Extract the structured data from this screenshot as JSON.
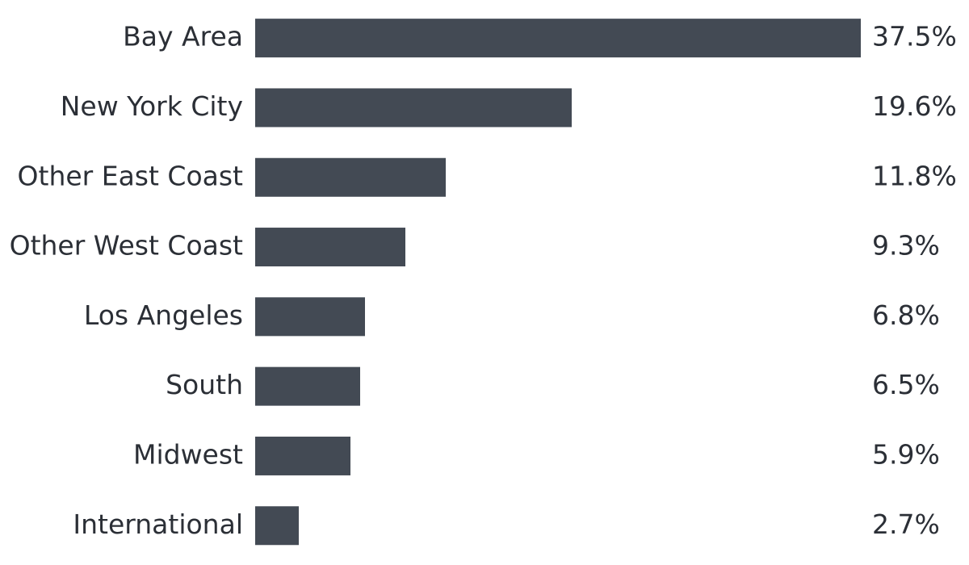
{
  "chart_data": {
    "type": "bar",
    "orientation": "horizontal",
    "categories": [
      "Bay Area",
      "New York City",
      "Other East Coast",
      "Other West Coast",
      "Los Angeles",
      "South",
      "Midwest",
      "International"
    ],
    "values": [
      37.5,
      19.6,
      11.8,
      9.3,
      6.8,
      6.5,
      5.9,
      2.7
    ],
    "value_labels": [
      "37.5%",
      "19.6%",
      "11.8%",
      "9.3%",
      "6.8%",
      "6.5%",
      "5.9%",
      "2.7%"
    ],
    "color": "#434a54"
  }
}
